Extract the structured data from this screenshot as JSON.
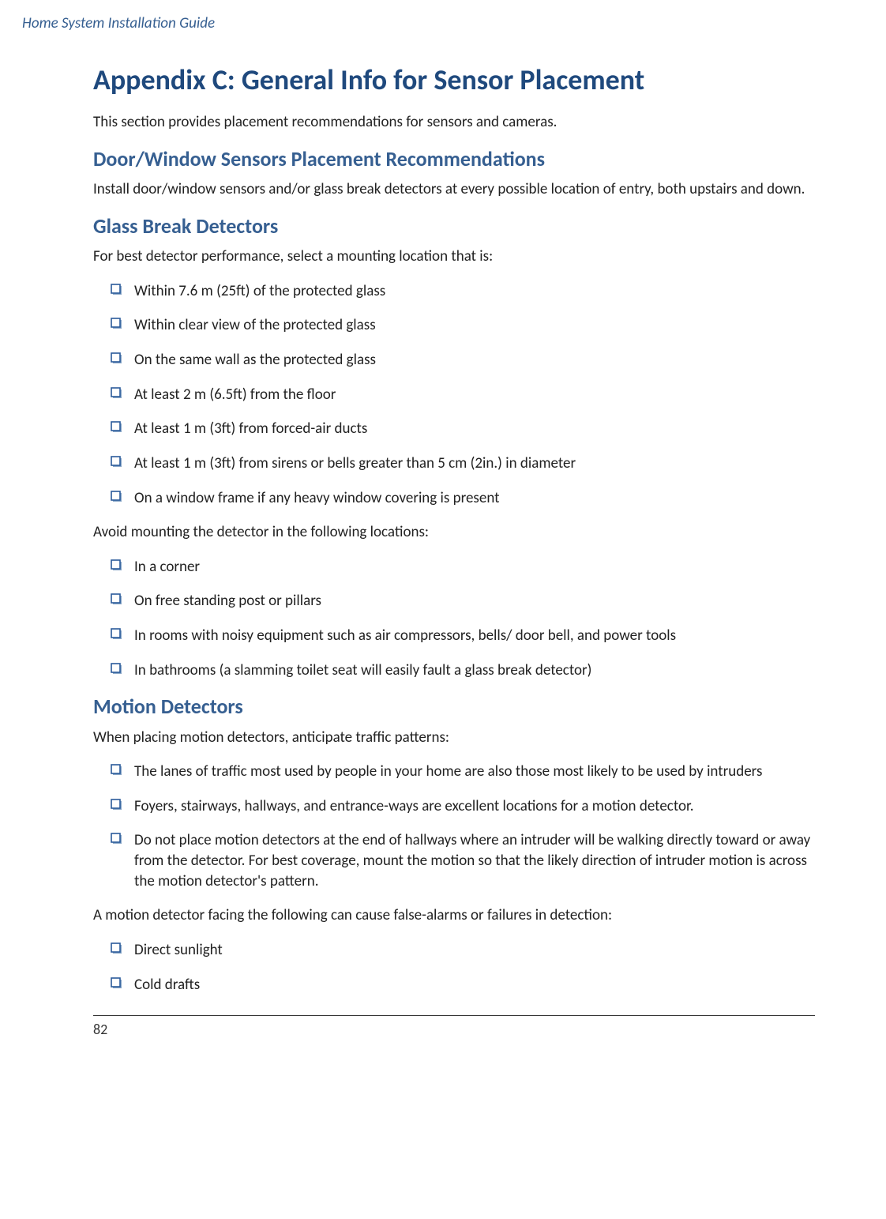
{
  "colors": {
    "heading_primary": "#1f497d",
    "heading_secondary": "#365f91",
    "running_head": "#365f91",
    "body_text": "#222222",
    "icon_stroke": "#2a5a9a",
    "icon_shadow": "#8aa7c8",
    "page_bg": "#ffffff",
    "rule": "#333333"
  },
  "typography": {
    "running_head_fontsize": 19,
    "h1_fontsize": 36,
    "h2_fontsize": 26,
    "body_fontsize": 19,
    "font_family": "Calibri"
  },
  "running_head": "Home System Installation Guide",
  "title": "Appendix C: General Info for Sensor Placement",
  "intro": "This section provides placement recommendations for sensors and cameras.",
  "sections": [
    {
      "heading": "Door/Window Sensors Placement Recommendations",
      "paragraphs": [
        "Install door/window sensors and/or glass break detectors at every possible location of entry, both upstairs and down."
      ],
      "lists": []
    },
    {
      "heading": "Glass Break Detectors",
      "paragraphs": [
        "For best detector performance, select a mounting location that is:"
      ],
      "lists": [
        [
          "Within 7.6 m (25ft) of the protected glass",
          "Within clear view of the protected glass",
          "On the same wall as the protected glass",
          "At least 2 m (6.5ft) from the floor",
          "At least 1 m (3ft) from forced-air ducts",
          "At least 1 m (3ft) from sirens or bells greater than 5 cm (2in.) in diameter",
          "On a window frame if any heavy window covering is present"
        ]
      ],
      "after_paragraphs": [
        "Avoid mounting the detector in the following locations:"
      ],
      "after_lists": [
        [
          "In a corner",
          "On free standing post or pillars",
          "In rooms with noisy equipment such as air compressors, bells/ door bell, and power tools",
          "In bathrooms (a slamming toilet seat will easily fault a glass break detector)"
        ]
      ]
    },
    {
      "heading": "Motion Detectors",
      "paragraphs": [
        "When placing motion detectors, anticipate traffic patterns:"
      ],
      "lists": [
        [
          "The lanes of traffic most used by people in your home are also those most likely to be used by intruders",
          "Foyers, stairways, hallways, and entrance-ways are excellent locations for a motion detector.",
          "Do not place motion detectors at the end of hallways where an intruder will be walking directly toward or away from the detector. For best coverage, mount the motion so that the likely direction of intruder motion is across the motion detector's pattern."
        ]
      ],
      "after_paragraphs": [
        "A motion detector facing the following can cause false-alarms or failures in detection:"
      ],
      "after_lists": [
        [
          "Direct sunlight",
          "Cold drafts"
        ]
      ]
    }
  ],
  "page_number": "82"
}
